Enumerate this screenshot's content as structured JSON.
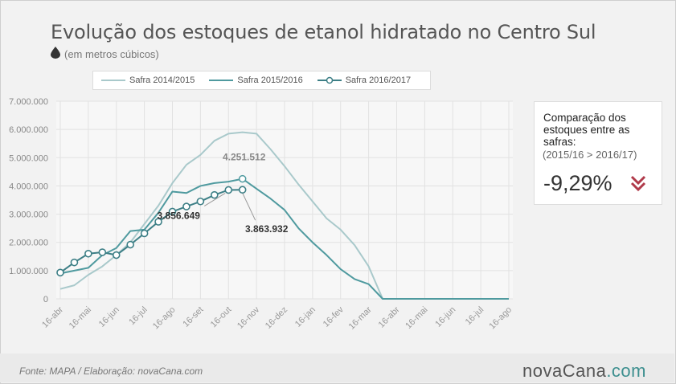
{
  "header": {
    "title": "Evolução dos estoques de etanol hidratado no Centro Sul",
    "subtitle": "(em metros cúbicos)",
    "drop_icon": "droplet-icon"
  },
  "comparison": {
    "heading": "Comparação dos estoques entre as safras:",
    "safras": "(2015/16 > 2016/17)",
    "value": "-9,29%",
    "icon": "double-chevron-down-icon",
    "icon_color": "#b03a4a"
  },
  "footer": {
    "source": "Fonte: MAPA  / Elaboração: novaCana.com",
    "brand_main": "novaCana",
    "brand_tld": ".com"
  },
  "chart_data": {
    "type": "line",
    "categories": [
      "16-abr",
      "16-mai",
      "16-jun",
      "16-jul",
      "16-ago",
      "16-set",
      "16-out",
      "16-nov",
      "16-dez",
      "16-jan",
      "16-fev",
      "16-mar",
      "16-abr",
      "16-mai",
      "16-jun",
      "16-jul",
      "16-ago"
    ],
    "ylim": [
      0,
      7000000
    ],
    "yticks": [
      "0",
      "1.000.000",
      "2.000.000",
      "3.000.000",
      "4.000.000",
      "5.000.000",
      "6.000.000",
      "7.000.000"
    ],
    "grid": true,
    "legend_position": "top",
    "series": [
      {
        "name": "Safra 2014/2015",
        "color": "#a9c9cb",
        "markers": false,
        "x": [
          0,
          0.5,
          1,
          1.5,
          2,
          2.5,
          3,
          3.5,
          4,
          4.5,
          5,
          5.5,
          6,
          6.5,
          7,
          7.5,
          8,
          8.5,
          9,
          9.5,
          10,
          10.5,
          11,
          11.5,
          12,
          13,
          14,
          15,
          16
        ],
        "values": [
          350000,
          480000,
          850000,
          1150000,
          1550000,
          2000000,
          2650000,
          3300000,
          4100000,
          4750000,
          5100000,
          5600000,
          5850000,
          5900000,
          5850000,
          5300000,
          4700000,
          4050000,
          3450000,
          2850000,
          2450000,
          1900000,
          1150000,
          0,
          0,
          0,
          0,
          0,
          0
        ]
      },
      {
        "name": "Safra 2015/2016",
        "color": "#4f9a9f",
        "markers": false,
        "x": [
          0,
          0.5,
          1,
          1.5,
          2,
          2.5,
          3,
          3.5,
          4,
          4.5,
          5,
          5.5,
          6,
          6.5,
          7,
          7.5,
          8,
          8.5,
          9,
          9.5,
          10,
          10.5,
          11,
          11.5,
          12,
          13,
          14,
          15,
          16
        ],
        "values": [
          900000,
          1000000,
          1100000,
          1550000,
          1800000,
          2400000,
          2450000,
          3050000,
          3800000,
          3750000,
          4000000,
          4100000,
          4150000,
          4251512,
          3900000,
          3550000,
          3150000,
          2500000,
          2000000,
          1550000,
          1050000,
          700000,
          520000,
          0,
          0,
          0,
          0,
          0,
          0
        ]
      },
      {
        "name": "Safra 2016/2017",
        "color": "#3d7f86",
        "markers": true,
        "x": [
          0,
          0.5,
          1,
          1.5,
          2,
          2.5,
          3,
          3.5,
          4,
          4.5,
          5,
          5.5,
          6,
          6.5
        ],
        "values": [
          930000,
          1290000,
          1600000,
          1650000,
          1550000,
          1920000,
          2320000,
          2730000,
          3090000,
          3270000,
          3450000,
          3680000,
          3856649,
          3863932
        ]
      }
    ],
    "annotations": [
      {
        "label": "4.251.512",
        "x": 6.5,
        "y": 4251512
      },
      {
        "label": "3.863.932",
        "x": 6.5,
        "y": 3863932
      },
      {
        "label": "3.856.649",
        "x": 6,
        "y": 3856649
      }
    ]
  }
}
